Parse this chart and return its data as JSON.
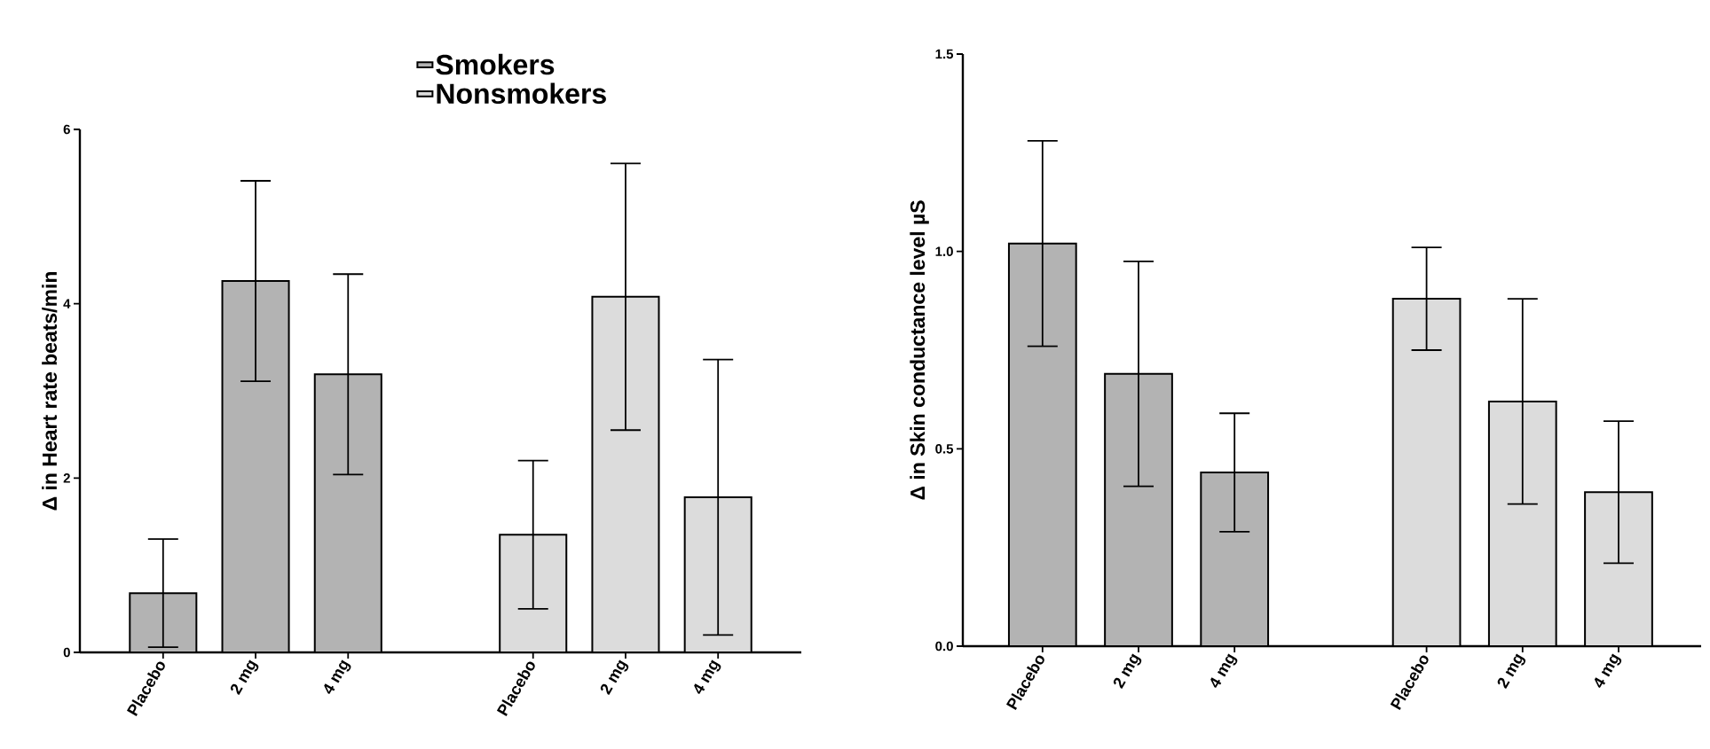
{
  "chart_data": [
    {
      "type": "bar",
      "ylabel": "Δ in Heart rate beats/min",
      "categories": [
        "Placebo",
        "2 mg",
        "4 mg",
        null,
        "Placebo",
        "2 mg",
        "4 mg"
      ],
      "series": [
        {
          "name": "Smokers",
          "color": "#b3b3b3",
          "values": [
            0.68,
            4.26,
            3.19,
            null,
            null,
            null,
            null
          ],
          "errors": [
            0.62,
            1.15,
            1.15,
            null,
            null,
            null,
            null
          ]
        },
        {
          "name": "Nonsmokers",
          "color": "#dcdcdc",
          "values": [
            null,
            null,
            null,
            null,
            1.35,
            4.08,
            1.78
          ],
          "errors": [
            null,
            null,
            null,
            null,
            0.85,
            1.53,
            1.58
          ]
        }
      ],
      "ylim": [
        0,
        6
      ],
      "yticks": [
        0,
        2,
        4,
        6
      ],
      "legend": "top"
    },
    {
      "type": "bar",
      "ylabel": "Δ in Skin conductance level µS",
      "categories": [
        "Placebo",
        "2 mg",
        "4 mg",
        null,
        "Placebo",
        "2 mg",
        "4 mg"
      ],
      "series": [
        {
          "color": "#b3b3b3",
          "values": [
            1.02,
            0.69,
            0.44,
            null,
            null,
            null,
            null
          ],
          "errors": [
            0.26,
            0.285,
            0.15,
            null,
            null,
            null,
            null
          ]
        },
        {
          "color": "#dcdcdc",
          "values": [
            null,
            null,
            null,
            null,
            0.88,
            0.62,
            0.39
          ],
          "errors": [
            null,
            null,
            null,
            null,
            0.13,
            0.26,
            0.18
          ]
        }
      ],
      "ylim": [
        0,
        1.5
      ],
      "yticks": [
        {
          "value": 0,
          "label": "0.0"
        },
        {
          "value": 0.5,
          "label": "0.5"
        },
        {
          "value": 1,
          "label": "1.0"
        },
        {
          "value": 1.5,
          "label": "1.5"
        }
      ]
    }
  ]
}
